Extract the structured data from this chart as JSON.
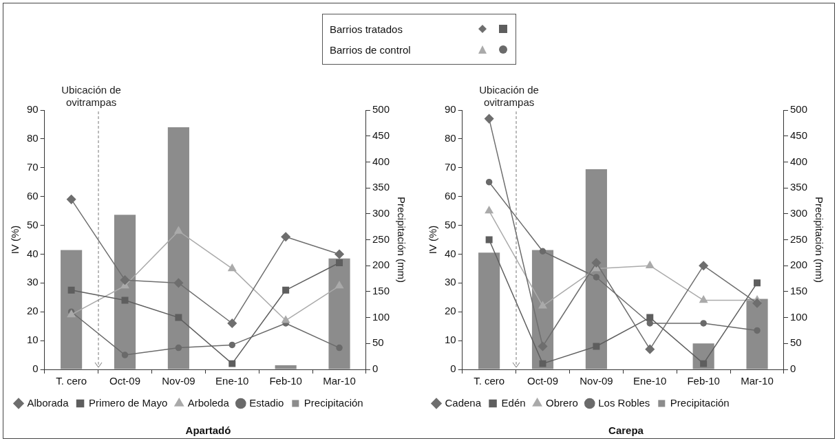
{
  "chart_data": [
    {
      "type": "line",
      "title": "Apartadó",
      "ylabel": "IV (%)",
      "y2label": "Precipitación (mm)",
      "annotations": [
        "Ubicación de ovitrampas",
        "Barrios tratados",
        "Barrios de control"
      ],
      "categories": [
        "T. cero",
        "Oct-09",
        "Nov-09",
        "Ene-10",
        "Feb-10",
        "Mar-10"
      ],
      "ylim": [
        0,
        90
      ],
      "yticks": [
        0,
        10,
        20,
        30,
        40,
        50,
        60,
        70,
        80,
        90
      ],
      "y2lim": [
        0,
        500
      ],
      "y2ticks": [
        0,
        50,
        100,
        150,
        200,
        250,
        300,
        350,
        400,
        450,
        500
      ],
      "grid": false,
      "legend": "bottom",
      "series": [
        {
          "name": "Alborada",
          "marker": "diamond",
          "color": "#6e6e6e",
          "values": [
            59,
            31,
            30,
            16,
            46,
            40
          ]
        },
        {
          "name": "Primero de Mayo",
          "marker": "square",
          "color": "#5e5e5e",
          "values": [
            27.5,
            24,
            18,
            2,
            27.5,
            37
          ]
        },
        {
          "name": "Arboleda",
          "marker": "triangle",
          "color": "#aaaaaa",
          "values": [
            19,
            29,
            48,
            35,
            17,
            29
          ]
        },
        {
          "name": "Estadio",
          "marker": "circle",
          "color": "#6a6a6a",
          "values": [
            20,
            5,
            7.5,
            8.5,
            16,
            7.5
          ]
        },
        {
          "name": "Precipitación",
          "type": "bar",
          "axis": "y2",
          "color": "#8c8c8c",
          "values": [
            230,
            298,
            467,
            null,
            8,
            214
          ]
        }
      ]
    },
    {
      "type": "line",
      "title": "Carepa",
      "ylabel": "IV (%)",
      "y2label": "Precipitación (mm)",
      "annotations": [
        "Ubicación de ovitrampas"
      ],
      "categories": [
        "T. cero",
        "Oct-09",
        "Nov-09",
        "Ene-10",
        "Feb-10",
        "Mar-10"
      ],
      "ylim": [
        0,
        90
      ],
      "yticks": [
        0,
        10,
        20,
        30,
        40,
        50,
        60,
        70,
        80,
        90
      ],
      "y2lim": [
        0,
        500
      ],
      "y2ticks": [
        0,
        50,
        100,
        150,
        200,
        250,
        300,
        350,
        400,
        450,
        500
      ],
      "grid": false,
      "legend": "bottom",
      "series": [
        {
          "name": "Cadena",
          "marker": "diamond",
          "color": "#6e6e6e",
          "values": [
            87,
            8,
            37,
            7,
            36,
            23
          ]
        },
        {
          "name": "Edén",
          "marker": "square",
          "color": "#5e5e5e",
          "values": [
            45,
            2,
            8,
            18,
            2,
            30
          ]
        },
        {
          "name": "Obrero",
          "marker": "triangle",
          "color": "#aaaaaa",
          "values": [
            55,
            22,
            35,
            36,
            24,
            24
          ]
        },
        {
          "name": "Los Robles",
          "marker": "circle",
          "color": "#6a6a6a",
          "values": [
            65,
            41,
            32,
            16,
            16,
            13.5
          ]
        },
        {
          "name": "Precipitación",
          "type": "bar",
          "axis": "y2",
          "color": "#8c8c8c",
          "values": [
            225,
            230,
            386,
            null,
            50,
            136
          ]
        }
      ]
    }
  ]
}
